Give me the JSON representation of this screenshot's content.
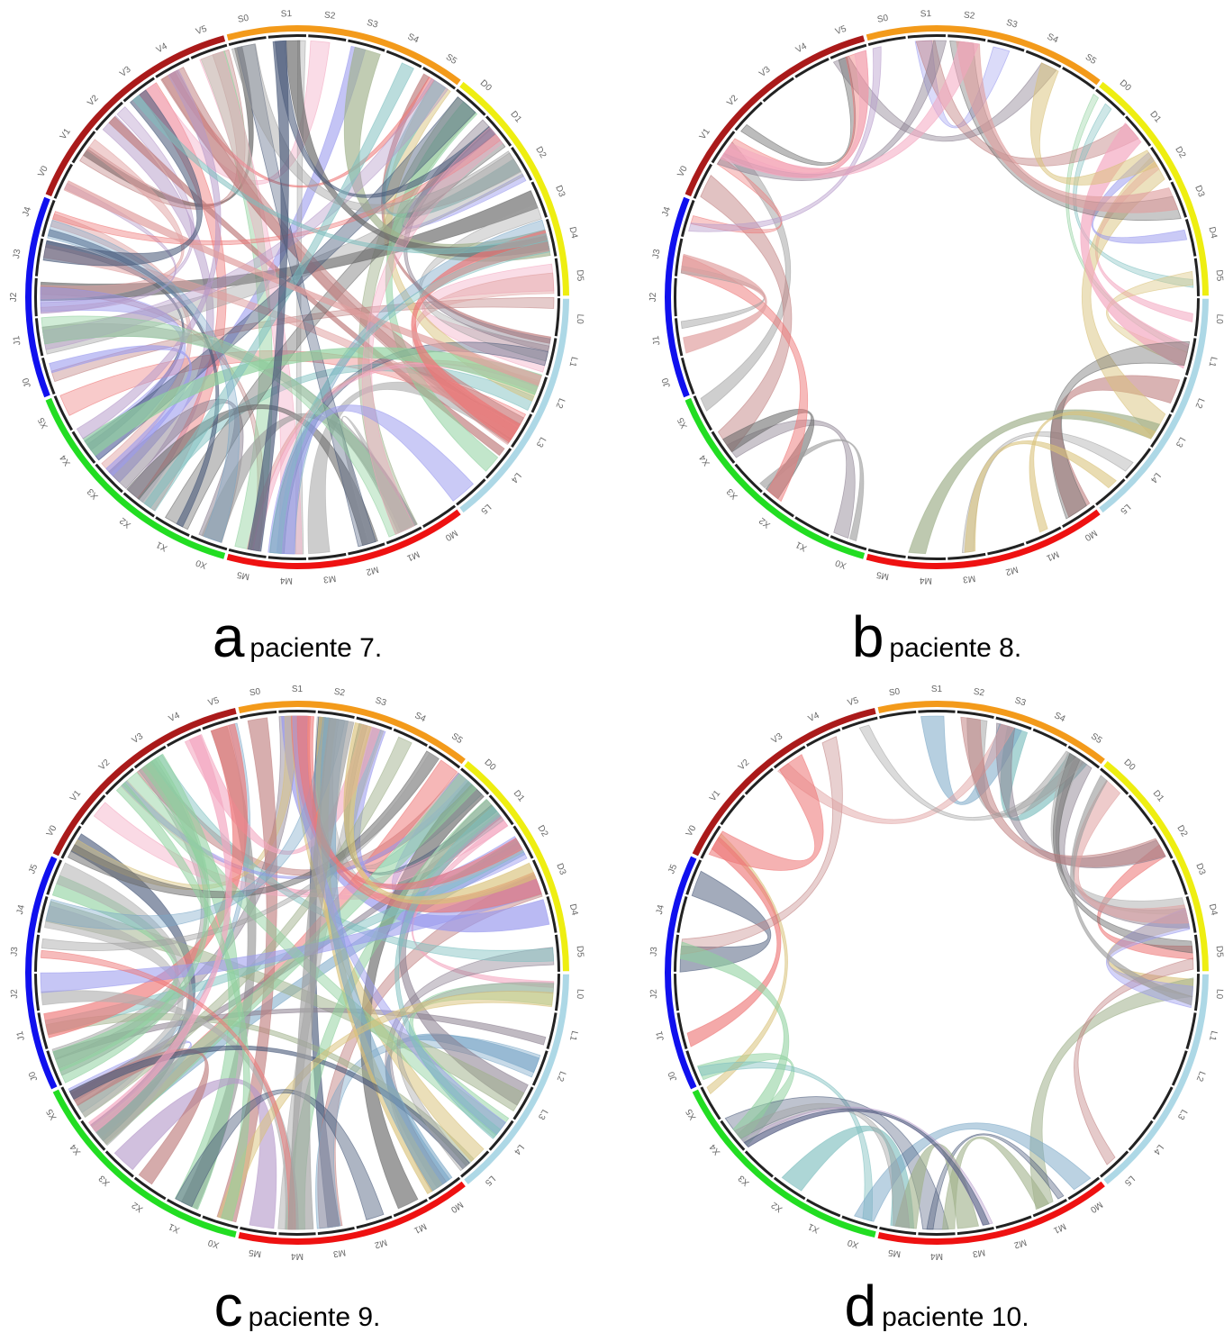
{
  "panels": [
    {
      "letter": "a",
      "caption": "paciente 7.",
      "groups": [
        {
          "color": "#add8e6",
          "labels": [
            "L0",
            "L1",
            "L2",
            "L3",
            "L4",
            "L5"
          ]
        },
        {
          "color": "#ee1111",
          "labels": [
            "M0",
            "M1",
            "M2",
            "M3",
            "M4",
            "M5"
          ]
        },
        {
          "color": "#22dd22",
          "labels": [
            "X0",
            "X1",
            "X2",
            "X3",
            "X4",
            "X5"
          ]
        },
        {
          "color": "#1010ee",
          "labels": [
            "J0",
            "J1",
            "J2",
            "J3",
            "J4"
          ]
        },
        {
          "color": "#aa1a1a",
          "labels": [
            "V0",
            "V1",
            "V2",
            "V3",
            "V4",
            "V5"
          ]
        },
        {
          "color": "#f39a1a",
          "labels": [
            "S0",
            "S1",
            "S2",
            "S3",
            "S4",
            "S5"
          ]
        },
        {
          "color": "#eeee11",
          "labels": [
            "D0",
            "D1",
            "D2",
            "D3",
            "D4",
            "D5"
          ]
        }
      ],
      "density": "dense"
    },
    {
      "letter": "b",
      "caption": "paciente 8.",
      "groups": [
        {
          "color": "#add8e6",
          "labels": [
            "L0",
            "L1",
            "L2",
            "L3",
            "L4",
            "L5"
          ]
        },
        {
          "color": "#ee1111",
          "labels": [
            "M0",
            "M1",
            "M2",
            "M3",
            "M4",
            "M5"
          ]
        },
        {
          "color": "#22dd22",
          "labels": [
            "X0",
            "X1",
            "X2",
            "X3",
            "X4",
            "X5"
          ]
        },
        {
          "color": "#1010ee",
          "labels": [
            "J0",
            "J1",
            "J2",
            "J3",
            "J4"
          ]
        },
        {
          "color": "#aa1a1a",
          "labels": [
            "V0",
            "V1",
            "V2",
            "V3",
            "V4",
            "V5"
          ]
        },
        {
          "color": "#f39a1a",
          "labels": [
            "S0",
            "S1",
            "S2",
            "S3",
            "S4",
            "S5"
          ]
        },
        {
          "color": "#eeee11",
          "labels": [
            "D0",
            "D1",
            "D2",
            "D3",
            "D4",
            "D5"
          ]
        }
      ],
      "density": "sparse"
    },
    {
      "letter": "c",
      "caption": "paciente 9.",
      "groups": [
        {
          "color": "#add8e6",
          "labels": [
            "L0",
            "L1",
            "L2",
            "L3",
            "L4",
            "L5"
          ]
        },
        {
          "color": "#ee1111",
          "labels": [
            "M0",
            "M1",
            "M2",
            "M3",
            "M4",
            "M5"
          ]
        },
        {
          "color": "#22dd22",
          "labels": [
            "X0",
            "X1",
            "X2",
            "X3",
            "X4",
            "X5"
          ]
        },
        {
          "color": "#1010ee",
          "labels": [
            "J0",
            "J1",
            "J2",
            "J3",
            "J4",
            "J5"
          ]
        },
        {
          "color": "#aa1a1a",
          "labels": [
            "V0",
            "V1",
            "V2",
            "V3",
            "V4",
            "V5"
          ]
        },
        {
          "color": "#f39a1a",
          "labels": [
            "S0",
            "S1",
            "S2",
            "S3",
            "S4",
            "S5"
          ]
        },
        {
          "color": "#eeee11",
          "labels": [
            "D0",
            "D1",
            "D2",
            "D3",
            "D4",
            "D5"
          ]
        }
      ],
      "density": "dense"
    },
    {
      "letter": "d",
      "caption": "paciente 10.",
      "groups": [
        {
          "color": "#add8e6",
          "labels": [
            "L0",
            "L1",
            "L2",
            "L3",
            "L4",
            "L5"
          ]
        },
        {
          "color": "#ee1111",
          "labels": [
            "M0",
            "M1",
            "M2",
            "M3",
            "M4",
            "M5"
          ]
        },
        {
          "color": "#22dd22",
          "labels": [
            "X0",
            "X1",
            "X2",
            "X3",
            "X4",
            "X5"
          ]
        },
        {
          "color": "#1010ee",
          "labels": [
            "J0",
            "J1",
            "J2",
            "J3",
            "J4",
            "J5"
          ]
        },
        {
          "color": "#aa1a1a",
          "labels": [
            "V0",
            "V1",
            "V2",
            "V3",
            "V4",
            "V5"
          ]
        },
        {
          "color": "#f39a1a",
          "labels": [
            "S0",
            "S1",
            "S2",
            "S3",
            "S4",
            "S5"
          ]
        },
        {
          "color": "#eeee11",
          "labels": [
            "D0",
            "D1",
            "D2",
            "D3",
            "D4",
            "D5"
          ]
        }
      ],
      "density": "sparse"
    }
  ]
}
